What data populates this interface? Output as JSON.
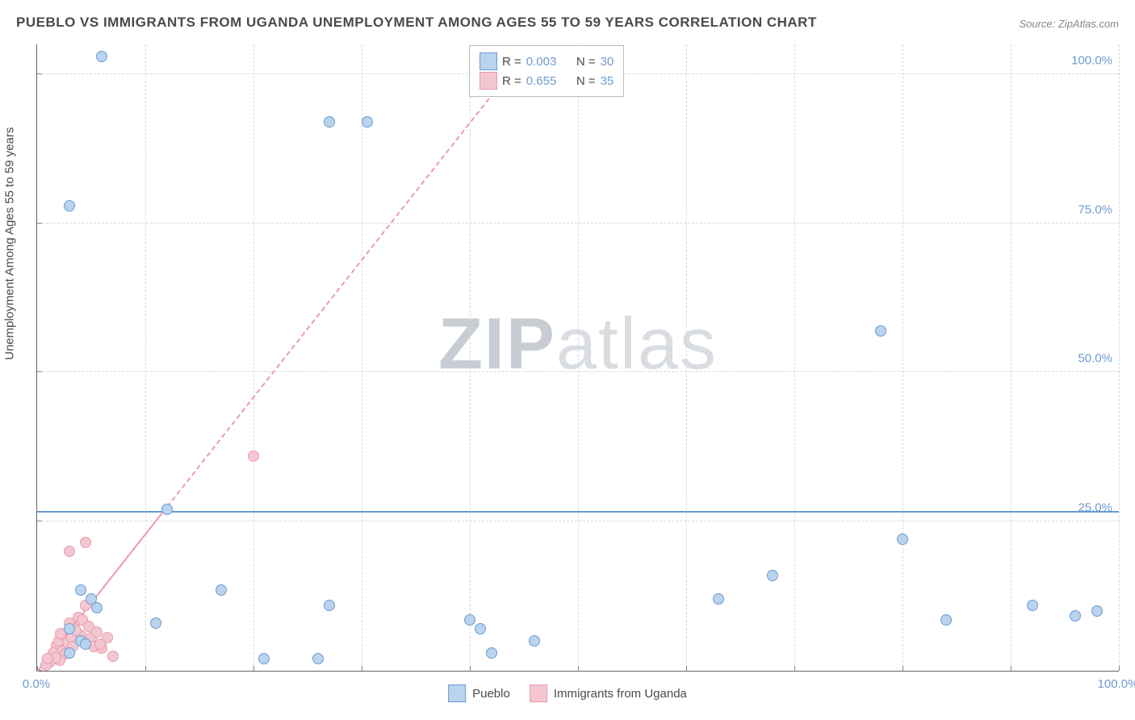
{
  "title": "PUEBLO VS IMMIGRANTS FROM UGANDA UNEMPLOYMENT AMONG AGES 55 TO 59 YEARS CORRELATION CHART",
  "source": "Source: ZipAtlas.com",
  "y_axis_label": "Unemployment Among Ages 55 to 59 years",
  "watermark_a": "ZIP",
  "watermark_b": "atlas",
  "x_axis": {
    "min": 0,
    "max": 100,
    "ticks": [
      0,
      10,
      20,
      30,
      40,
      50,
      60,
      70,
      80,
      90,
      100
    ],
    "labels": {
      "0": "0.0%",
      "100": "100.0%"
    }
  },
  "y_axis": {
    "min": 0,
    "max": 105,
    "ticks": [
      0,
      25,
      50,
      75,
      100
    ],
    "labels": {
      "25": "25.0%",
      "50": "50.0%",
      "75": "75.0%",
      "100": "100.0%"
    }
  },
  "grid_color": "#d8d8d8",
  "series_a": {
    "name": "Pueblo",
    "color_fill": "#b9d4ec",
    "color_stroke": "#6b9bd1",
    "r": 0.003,
    "n": 30,
    "points": [
      [
        6,
        103
      ],
      [
        3,
        78
      ],
      [
        27,
        92
      ],
      [
        30.5,
        92
      ],
      [
        45.5,
        103
      ],
      [
        12,
        27
      ],
      [
        17,
        13.5
      ],
      [
        21,
        2
      ],
      [
        26,
        2
      ],
      [
        11,
        8
      ],
      [
        27,
        11
      ],
      [
        4,
        13.5
      ],
      [
        5,
        12
      ],
      [
        5.5,
        10.5
      ],
      [
        4,
        5
      ],
      [
        3,
        7
      ],
      [
        40,
        8.5
      ],
      [
        41,
        7
      ],
      [
        42,
        3
      ],
      [
        80,
        22
      ],
      [
        63,
        12
      ],
      [
        68,
        16
      ],
      [
        84,
        8.5
      ],
      [
        92,
        11
      ],
      [
        96,
        9.2
      ],
      [
        98,
        10
      ],
      [
        3,
        3
      ],
      [
        4.5,
        4.5
      ],
      [
        46,
        5
      ],
      [
        78,
        57
      ]
    ],
    "trend": {
      "y": 26.5,
      "slope": 0.003
    }
  },
  "series_b": {
    "name": "Immigrants from Uganda",
    "color_fill": "#f4c7d0",
    "color_stroke": "#e89bb0",
    "r": 0.655,
    "n": 35,
    "points": [
      [
        1.5,
        2
      ],
      [
        1.8,
        4.2
      ],
      [
        2,
        5
      ],
      [
        2.2,
        6.2
      ],
      [
        2.5,
        3.5
      ],
      [
        2.8,
        4.8
      ],
      [
        3,
        8
      ],
      [
        3.2,
        5.5
      ],
      [
        3.5,
        7
      ],
      [
        3.8,
        9
      ],
      [
        4,
        6
      ],
      [
        4.2,
        8.5
      ],
      [
        4.5,
        11
      ],
      [
        5,
        5.5
      ],
      [
        5.2,
        4
      ],
      [
        5.5,
        6.5
      ],
      [
        6,
        3.8
      ],
      [
        3,
        20
      ],
      [
        4.5,
        21.5
      ],
      [
        6.5,
        5.5
      ],
      [
        7,
        2.5
      ],
      [
        2,
        2.5
      ],
      [
        2.3,
        3.2
      ],
      [
        2.6,
        2.8
      ],
      [
        1.2,
        1.5
      ],
      [
        1.5,
        3
      ],
      [
        3.3,
        4
      ],
      [
        3.6,
        6.8
      ],
      [
        4.8,
        7.5
      ],
      [
        5.8,
        4.5
      ],
      [
        2.1,
        1.8
      ],
      [
        1.7,
        2.2
      ],
      [
        0.8,
        1
      ],
      [
        1,
        2
      ],
      [
        20,
        36
      ]
    ],
    "trend": {
      "intercept": 0,
      "slope_visual": 2.3
    }
  },
  "legend_top": {
    "rows": [
      {
        "swatch_fill": "#b9d4ec",
        "swatch_stroke": "#6b9bd1",
        "r_label": "R =",
        "r_val": "0.003",
        "n_label": "N =",
        "n_val": "30"
      },
      {
        "swatch_fill": "#f4c7d0",
        "swatch_stroke": "#e89bb0",
        "r_label": "R =",
        "r_val": "0.655",
        "n_label": "N =",
        "n_val": "35"
      }
    ]
  },
  "legend_bottom": [
    {
      "swatch_fill": "#b9d4ec",
      "swatch_stroke": "#6b9bd1",
      "label": "Pueblo"
    },
    {
      "swatch_fill": "#f4c7d0",
      "swatch_stroke": "#e89bb0",
      "label": "Immigrants from Uganda"
    }
  ],
  "point_size": 14,
  "background_color": "#ffffff"
}
